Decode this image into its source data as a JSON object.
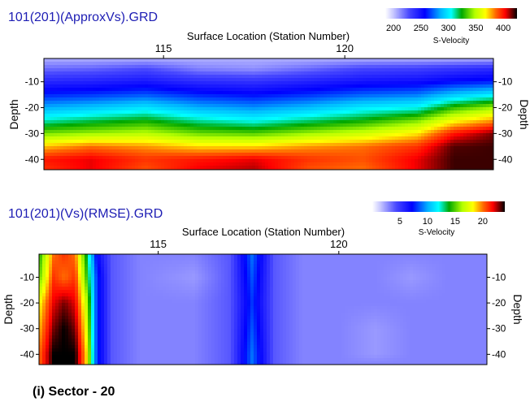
{
  "caption": "(i) Sector - 20",
  "chart_data": [
    {
      "type": "heatmap",
      "title": "101(201)(ApproxVs).GRD",
      "xlabel": "Surface Location (Station Number)",
      "ylabel": "Depth",
      "x_ticks": [
        115,
        120
      ],
      "y_ticks": [
        -10,
        -20,
        -30,
        -40
      ],
      "xlim": [
        111.7,
        124.1
      ],
      "ylim": [
        -44,
        -1
      ],
      "colorbar": {
        "label": "S-Velocity",
        "ticks": [
          200,
          250,
          300,
          350,
          400
        ],
        "range": [
          185,
          425
        ]
      },
      "z_description": "S-Velocity increasing with depth; low (~200) near surface, high (~420) at depth; black high-velocity zone at the right below -30",
      "z_grid": {
        "x": [
          111.7,
          113,
          114.5,
          116,
          117.5,
          119,
          120.5,
          122,
          123,
          124.1
        ],
        "y": [
          -1,
          -5,
          -10,
          -15,
          -20,
          -25,
          -30,
          -35,
          -40,
          -44
        ],
        "values": [
          [
            205,
            205,
            205,
            205,
            205,
            205,
            205,
            205,
            205,
            205
          ],
          [
            220,
            222,
            228,
            215,
            212,
            220,
            230,
            232,
            236,
            240
          ],
          [
            242,
            244,
            248,
            240,
            238,
            244,
            250,
            252,
            258,
            262
          ],
          [
            262,
            265,
            270,
            262,
            258,
            264,
            272,
            276,
            290,
            300
          ],
          [
            285,
            290,
            298,
            285,
            280,
            288,
            300,
            305,
            330,
            345
          ],
          [
            310,
            318,
            325,
            312,
            305,
            315,
            325,
            340,
            365,
            380
          ],
          [
            340,
            345,
            350,
            338,
            335,
            345,
            355,
            370,
            400,
            415
          ],
          [
            375,
            385,
            380,
            372,
            372,
            380,
            385,
            395,
            418,
            420
          ],
          [
            400,
            405,
            395,
            400,
            405,
            395,
            390,
            405,
            420,
            420
          ],
          [
            395,
            405,
            390,
            405,
            410,
            390,
            385,
            405,
            420,
            420
          ]
        ]
      }
    },
    {
      "type": "heatmap",
      "title": "101(201)(Vs)(RMSE).GRD",
      "xlabel": "Surface Location (Station Number)",
      "ylabel": "Depth",
      "x_ticks": [
        115,
        120
      ],
      "y_ticks": [
        -10,
        -20,
        -30,
        -40
      ],
      "xlim": [
        111.7,
        124.1
      ],
      "ylim": [
        -44,
        -1
      ],
      "colorbar": {
        "label": "S-Velocity",
        "ticks": [
          5,
          10,
          15,
          20
        ],
        "range": [
          0,
          24
        ]
      },
      "z_description": "RMSE low (~2-4) almost everywhere; very high (~22) band at left edge (stations ~111.8-113.3) and a cyan band (~9) around station 117.6",
      "z_grid": {
        "x": [
          111.7,
          112.1,
          112.4,
          112.7,
          113.0,
          113.3,
          113.7,
          114.5,
          116.0,
          117.0,
          117.6,
          118.2,
          119.0,
          120.0,
          121.0,
          122.0,
          123.0,
          124.1
        ],
        "y": [
          -1,
          -10,
          -20,
          -30,
          -40,
          -44
        ],
        "values": [
          [
            14,
            20,
            21,
            20,
            14,
            7,
            4,
            3,
            3,
            4,
            9,
            4,
            3,
            3,
            3,
            3,
            3,
            3
          ],
          [
            15,
            21,
            20,
            21,
            15,
            8,
            4,
            3,
            2.5,
            4,
            8.5,
            4,
            3,
            3,
            3,
            2.5,
            3,
            3
          ],
          [
            18,
            22,
            23,
            22,
            17,
            8,
            4,
            3,
            3,
            4,
            8,
            4,
            3,
            3,
            3,
            3,
            3,
            3
          ],
          [
            19,
            23,
            24,
            23,
            18,
            8,
            4,
            3,
            3,
            4,
            8.5,
            4,
            3,
            3,
            2.5,
            3,
            3,
            3
          ],
          [
            20,
            24,
            24,
            24,
            19,
            8,
            4,
            3,
            3,
            4,
            9,
            4,
            3,
            3,
            2.5,
            3,
            3,
            3
          ],
          [
            20,
            24,
            24,
            24,
            19,
            8,
            4,
            3,
            3,
            4,
            9,
            4,
            3,
            3,
            3,
            3,
            3,
            3
          ]
        ]
      }
    }
  ],
  "colormap": {
    "stops": [
      [
        0.0,
        "#ffffff"
      ],
      [
        0.06,
        "#c8c8ff"
      ],
      [
        0.18,
        "#4848ff"
      ],
      [
        0.3,
        "#0000ff"
      ],
      [
        0.42,
        "#00b4ff"
      ],
      [
        0.5,
        "#00ffff"
      ],
      [
        0.58,
        "#00a800"
      ],
      [
        0.68,
        "#b4ff00"
      ],
      [
        0.76,
        "#ffff00"
      ],
      [
        0.84,
        "#ff6400"
      ],
      [
        0.91,
        "#ff0000"
      ],
      [
        1.0,
        "#000000"
      ]
    ]
  }
}
